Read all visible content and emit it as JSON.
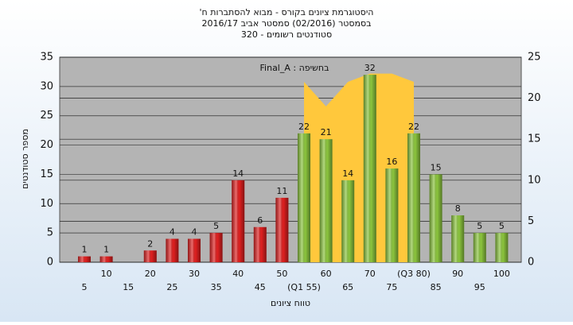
{
  "chart_data": {
    "type": "bar",
    "title": "היסטוגרמת ציונים בקורס - מבוא להסתברות ח'",
    "subtitle": "בסמסטר (02/2016) סמסטר אביב 2016/17",
    "subtitle2": "סטודנטים רשומים - 320",
    "annotation": "בחשיפה : Final_A",
    "x_label": "טווח ציונים",
    "y_label": "מספר סטודנטים",
    "categories": [
      "5",
      "10",
      "15",
      "20",
      "25",
      "30",
      "35",
      "40",
      "45",
      "50",
      "(Q1 55)",
      "60",
      "65",
      "70",
      "75",
      "(Q3 80)",
      "85",
      "90",
      "95",
      "100"
    ],
    "series": [
      {
        "type": "bar",
        "values": [
          1,
          1,
          null,
          2,
          4,
          4,
          5,
          14,
          6,
          11,
          22,
          21,
          14,
          32,
          16,
          22,
          15,
          8,
          5,
          5
        ],
        "colors": [
          "#e02020",
          "#e02020",
          "#e02020",
          "#e02020",
          "#e02020",
          "#e02020",
          "#e02020",
          "#e02020",
          "#e02020",
          "#e02020",
          "#8cc63e",
          "#8cc63e",
          "#8cc63e",
          "#8cc63e",
          "#8cc63e",
          "#8cc63e",
          "#8cc63e",
          "#8cc63e",
          "#8cc63e",
          "#8cc63e"
        ]
      },
      {
        "type": "area",
        "axis": "y2",
        "color": "#ffc83c",
        "values": [
          null,
          null,
          null,
          null,
          null,
          null,
          null,
          null,
          null,
          null,
          22,
          19,
          22,
          23,
          23,
          22,
          null,
          null,
          null,
          null
        ]
      }
    ],
    "ylim": [
      0,
      35
    ],
    "yticks": [
      0,
      5,
      10,
      15,
      20,
      25,
      30,
      35
    ],
    "y2lim": [
      0,
      25
    ],
    "y2ticks": [
      0,
      5,
      10,
      15,
      20,
      25
    ],
    "grid": true
  }
}
